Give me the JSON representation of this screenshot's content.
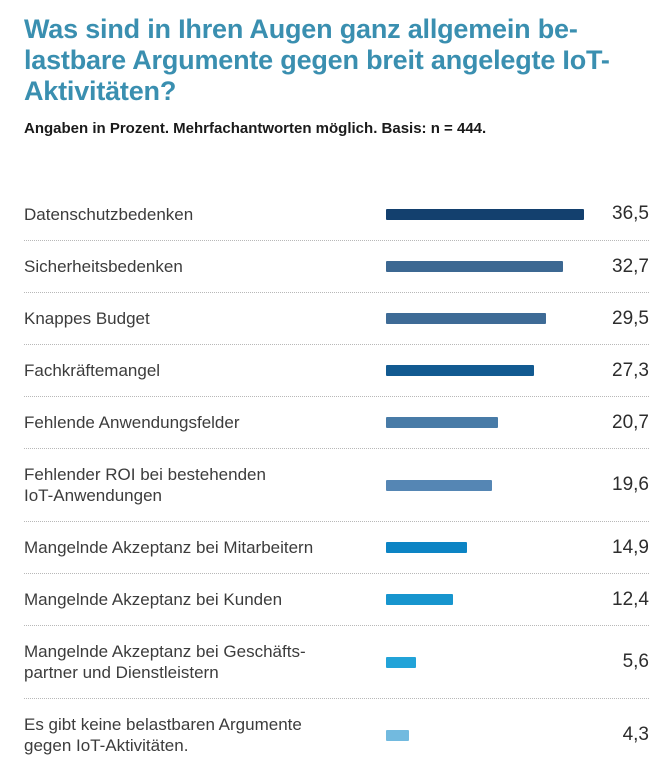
{
  "header": {
    "title_lines": [
      "Was sind in Ihren Augen ganz allgemein be-",
      "lastbare Argumente gegen breit angelegte IoT-",
      "Aktivitäten?"
    ],
    "subtitle": "Angaben in Prozent. Mehrfachantworten möglich. Basis: n = 444."
  },
  "colors": {
    "title": "#3a8fb0",
    "label": "#3c3c3c",
    "value": "#2d2d2d",
    "separator": "#b8b8b8",
    "background": "#ffffff"
  },
  "chart_data": {
    "type": "bar",
    "orientation": "horizontal",
    "title": "Was sind in Ihren Augen ganz allgemein belastbare Argumente gegen breit angelegte IoT-Aktivitäten?",
    "subtitle": "Angaben in Prozent. Mehrfachantworten möglich. Basis: n = 444.",
    "unit": "percent",
    "basis_n": 444,
    "categories": [
      "Datenschutzbedenken",
      "Sicherheitsbedenken",
      "Knappes Budget",
      "Fachkräftemangel",
      "Fehlende Anwendungsfelder",
      "Fehlender ROI bei bestehenden\nIoT-Anwendungen",
      "Mangelnde Akzeptanz bei Mitarbeitern",
      "Mangelnde Akzeptanz bei Kunden",
      "Mangelnde Akzeptanz bei Geschäfts-\npartner und Dienstleistern",
      "Es gibt keine belastbaren Argumente\ngegen IoT-Aktivitäten."
    ],
    "values": [
      36.5,
      32.7,
      29.5,
      27.3,
      20.7,
      19.6,
      14.9,
      12.4,
      5.6,
      4.3
    ],
    "value_labels": [
      "36,5",
      "32,7",
      "29,5",
      "27,3",
      "20,7",
      "19,6",
      "14,9",
      "12,4",
      "5,6",
      "4,3"
    ],
    "bar_colors": [
      "#13406e",
      "#3c6892",
      "#3e6b96",
      "#125a91",
      "#487ba7",
      "#5586b4",
      "#0c84c4",
      "#1795ce",
      "#22a3d8",
      "#72badf"
    ],
    "xlim": [
      0,
      40
    ],
    "grid": false,
    "legend": false,
    "value_label_position": "right"
  }
}
